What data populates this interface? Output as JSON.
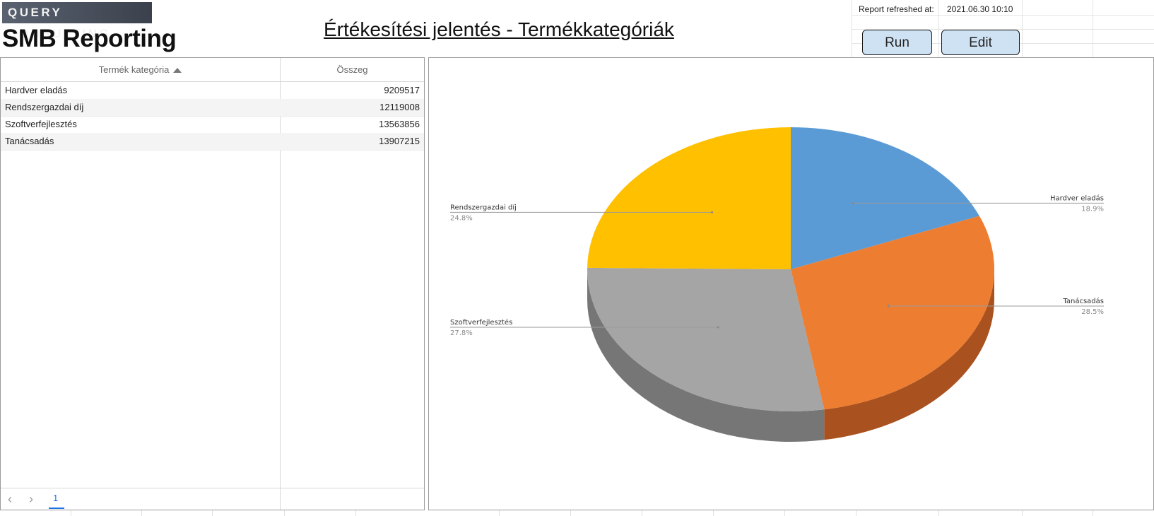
{
  "header": {
    "logo_top": "QUERY CONSULTING",
    "logo_bottom": "SMB Reporting",
    "title": "Értékesítési jelentés - Termékkategóriák"
  },
  "refresh": {
    "label": "Report refreshed at:",
    "value": "2021.06.30 10:10"
  },
  "buttons": {
    "run": "Run",
    "edit": "Edit"
  },
  "table": {
    "columns": [
      "Termék kategória",
      "Összeg"
    ],
    "rows": [
      {
        "category": "Hardver eladás",
        "amount": "9209517"
      },
      {
        "category": "Rendszergazdai díj",
        "amount": "12119008"
      },
      {
        "category": "Szoftverfejlesztés",
        "amount": "13563856"
      },
      {
        "category": "Tanácsadás",
        "amount": "13907215"
      }
    ],
    "pagination": {
      "current_page": "1"
    }
  },
  "chart_data": {
    "type": "pie",
    "three_d": true,
    "slices": [
      {
        "label": "Hardver eladás",
        "value": 9209517,
        "percent": "18.9%",
        "color": "#5b9bd5",
        "side_color": "#3f75a8"
      },
      {
        "label": "Tanácsadás",
        "value": 13907215,
        "percent": "28.5%",
        "color": "#ed7d31",
        "side_color": "#a9521f"
      },
      {
        "label": "Szoftverfejlesztés",
        "value": 13563856,
        "percent": "27.8%",
        "color": "#a5a5a5",
        "side_color": "#767676"
      },
      {
        "label": "Rendszergazdai díj",
        "value": 12119008,
        "percent": "24.8%",
        "color": "#ffc000",
        "side_color": "#b88a00"
      }
    ]
  }
}
